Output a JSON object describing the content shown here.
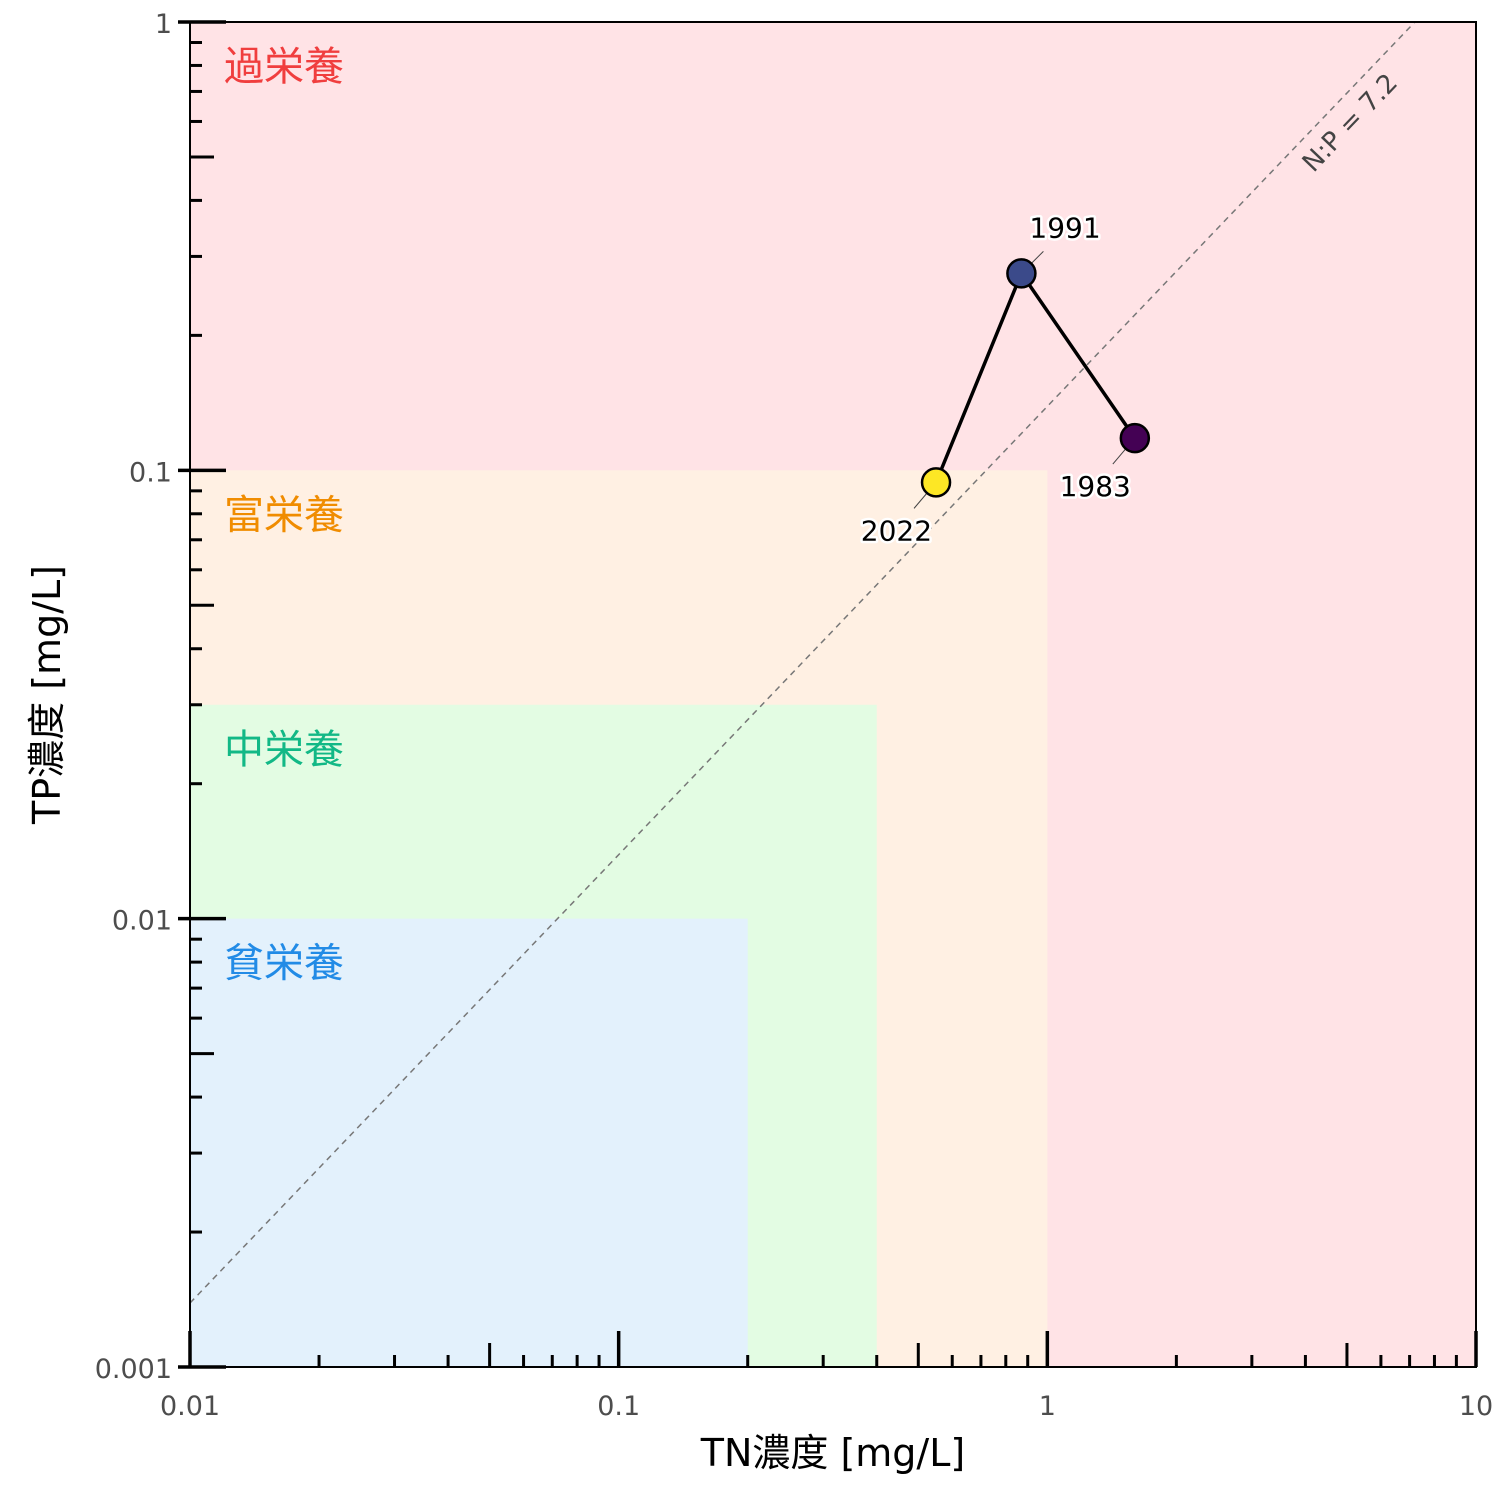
{
  "chart_data": {
    "type": "scatter",
    "xlabel": "TN濃度 [mg/L]",
    "ylabel": "TP濃度 [mg/L]",
    "x_scale": "log",
    "y_scale": "log",
    "xlim": [
      0.01,
      10
    ],
    "ylim": [
      0.001,
      1
    ],
    "x_ticks": [
      {
        "value": 0.01,
        "label": "0.01"
      },
      {
        "value": 0.1,
        "label": "0.1"
      },
      {
        "value": 1,
        "label": "1"
      },
      {
        "value": 10,
        "label": "10"
      }
    ],
    "y_ticks": [
      {
        "value": 0.001,
        "label": "0.001"
      },
      {
        "value": 0.01,
        "label": "0.01"
      },
      {
        "value": 0.1,
        "label": "0.1"
      },
      {
        "value": 1,
        "label": "1"
      }
    ],
    "grid": false,
    "zones": [
      {
        "label": "過栄養",
        "tn_max": 10,
        "tp_max": 1,
        "color": "#ffe3e6",
        "label_color": "#f03e3e"
      },
      {
        "label": "富栄養",
        "tn_max": 1,
        "tp_max": 0.1,
        "color": "#fff0e3",
        "label_color": "#f08c00"
      },
      {
        "label": "中栄養",
        "tn_max": 0.4,
        "tp_max": 0.03,
        "color": "#e3fce3",
        "label_color": "#12b886"
      },
      {
        "label": "貧栄養",
        "tn_max": 0.2,
        "tp_max": 0.01,
        "color": "#e3f1fc",
        "label_color": "#228be6"
      }
    ],
    "reference_line": {
      "label": "N:P = 7.2",
      "ratio": 7.2,
      "color": "#777777"
    },
    "points": [
      {
        "label": "1983",
        "tn": 1.6,
        "tp": 0.118,
        "color": "#440154",
        "label_pos": "below-left"
      },
      {
        "label": "1991",
        "tn": 0.87,
        "tp": 0.275,
        "color": "#3b4a8a",
        "label_pos": "above-right"
      },
      {
        "label": "2022",
        "tn": 0.55,
        "tp": 0.094,
        "color": "#fde725",
        "label_pos": "below-left"
      }
    ]
  }
}
